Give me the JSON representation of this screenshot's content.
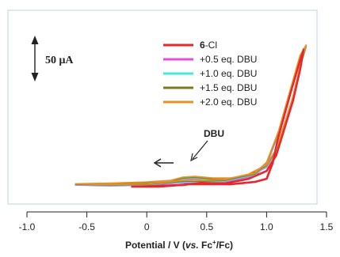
{
  "chart_data": {
    "type": "line",
    "title": "",
    "xlabel_parts": {
      "prefix": "Potential / V (",
      "italic": "vs.",
      "mid": " Fc",
      "sup": "+",
      "suffix": "/Fc)"
    },
    "ylabel": "",
    "xlim": [
      -1.0,
      1.5
    ],
    "ylim": [
      -30,
      200
    ],
    "x_ticks": [
      "-1.0",
      "-0.5",
      "0",
      "0.5",
      "1.0",
      "1.5"
    ],
    "x_tick_values": [
      -1.0,
      -0.5,
      0,
      0.5,
      1.0,
      1.5
    ],
    "scale_bar": {
      "label": "50 μA",
      "value": 50
    },
    "annotations": [
      {
        "text": "DBU",
        "x": 0.37,
        "y": 20
      },
      {
        "text": "",
        "direction": "arrow-left",
        "x": 0.06,
        "y": 18
      }
    ],
    "legend": {
      "position": "top-right",
      "entries": [
        {
          "bold": "6",
          "rest": "-Cl",
          "color": "#e8262b"
        },
        {
          "bold": "",
          "rest": "+0.5 eq. DBU",
          "color": "#e14ee0"
        },
        {
          "bold": "",
          "rest": "+1.0 eq. DBU",
          "color": "#45e6e6"
        },
        {
          "bold": "",
          "rest": "+1.5 eq. DBU",
          "color": "#7a7a1e"
        },
        {
          "bold": "",
          "rest": "+2.0 eq. DBU",
          "color": "#e8902a"
        }
      ]
    },
    "series": [
      {
        "name": "6-Cl",
        "color": "#e8262b",
        "forward": [
          [
            -0.13,
            0
          ],
          [
            0.1,
            0
          ],
          [
            0.2,
            1
          ],
          [
            0.35,
            3
          ],
          [
            0.5,
            3
          ],
          [
            0.7,
            3
          ],
          [
            0.9,
            6
          ],
          [
            1.0,
            10
          ],
          [
            1.05,
            30
          ],
          [
            1.1,
            65
          ],
          [
            1.2,
            120
          ],
          [
            1.28,
            162
          ],
          [
            1.31,
            176
          ]
        ],
        "reverse": [
          [
            1.31,
            176
          ],
          [
            1.28,
            150
          ],
          [
            1.22,
            110
          ],
          [
            1.15,
            75
          ],
          [
            1.08,
            40
          ],
          [
            1.0,
            20
          ],
          [
            0.85,
            10
          ],
          [
            0.65,
            4
          ],
          [
            0.45,
            5
          ],
          [
            0.3,
            2
          ],
          [
            0.1,
            1
          ],
          [
            -0.13,
            0
          ]
        ]
      },
      {
        "name": "+0.5 eq. DBU",
        "color": "#e14ee0",
        "forward": [
          [
            -0.6,
            2
          ],
          [
            -0.3,
            3
          ],
          [
            0,
            4
          ],
          [
            0.2,
            5
          ],
          [
            0.3,
            9
          ],
          [
            0.4,
            10
          ],
          [
            0.55,
            8
          ],
          [
            0.7,
            8
          ],
          [
            0.9,
            14
          ],
          [
            1.0,
            28
          ],
          [
            1.1,
            68
          ],
          [
            1.2,
            122
          ],
          [
            1.28,
            165
          ],
          [
            1.32,
            178
          ]
        ],
        "reverse": [
          [
            1.32,
            178
          ],
          [
            1.28,
            152
          ],
          [
            1.22,
            112
          ],
          [
            1.15,
            78
          ],
          [
            1.08,
            45
          ],
          [
            1.0,
            25
          ],
          [
            0.85,
            13
          ],
          [
            0.65,
            6
          ],
          [
            0.45,
            5
          ],
          [
            0.3,
            5
          ],
          [
            0.0,
            2
          ],
          [
            -0.3,
            1
          ],
          [
            -0.6,
            2
          ]
        ]
      },
      {
        "name": "+1.0 eq. DBU",
        "color": "#45e6e6",
        "forward": [
          [
            -0.6,
            2.5
          ],
          [
            -0.3,
            3.5
          ],
          [
            0,
            4.5
          ],
          [
            0.2,
            6
          ],
          [
            0.3,
            10
          ],
          [
            0.4,
            11
          ],
          [
            0.55,
            9
          ],
          [
            0.7,
            9
          ],
          [
            0.9,
            15
          ],
          [
            1.0,
            29
          ],
          [
            1.1,
            69
          ],
          [
            1.2,
            123
          ],
          [
            1.28,
            166
          ],
          [
            1.33,
            179
          ]
        ],
        "reverse": [
          [
            1.33,
            179
          ],
          [
            1.28,
            153
          ],
          [
            1.22,
            113
          ],
          [
            1.15,
            79
          ],
          [
            1.08,
            46
          ],
          [
            1.0,
            26
          ],
          [
            0.85,
            14
          ],
          [
            0.65,
            7
          ],
          [
            0.45,
            6
          ],
          [
            0.3,
            6
          ],
          [
            0.0,
            2.5
          ],
          [
            -0.3,
            1.5
          ],
          [
            -0.6,
            2.5
          ]
        ]
      },
      {
        "name": "+1.5 eq. DBU",
        "color": "#7a7a1e",
        "forward": [
          [
            -0.6,
            3
          ],
          [
            -0.3,
            4
          ],
          [
            0,
            5
          ],
          [
            0.2,
            7
          ],
          [
            0.3,
            11
          ],
          [
            0.4,
            12
          ],
          [
            0.55,
            10
          ],
          [
            0.7,
            10
          ],
          [
            0.9,
            16
          ],
          [
            1.0,
            30
          ],
          [
            1.1,
            70
          ],
          [
            1.2,
            124
          ],
          [
            1.28,
            167
          ],
          [
            1.33,
            180
          ]
        ],
        "reverse": [
          [
            1.33,
            180
          ],
          [
            1.28,
            154
          ],
          [
            1.22,
            114
          ],
          [
            1.15,
            80
          ],
          [
            1.08,
            47
          ],
          [
            1.0,
            27
          ],
          [
            0.85,
            15
          ],
          [
            0.65,
            8
          ],
          [
            0.45,
            7
          ],
          [
            0.3,
            7
          ],
          [
            0.0,
            3
          ],
          [
            -0.3,
            2
          ],
          [
            -0.6,
            3
          ]
        ]
      },
      {
        "name": "+2.0 eq. DBU",
        "color": "#e8902a",
        "forward": [
          [
            -0.6,
            3.5
          ],
          [
            -0.3,
            4.5
          ],
          [
            0,
            6
          ],
          [
            0.2,
            8
          ],
          [
            0.3,
            12
          ],
          [
            0.4,
            13
          ],
          [
            0.55,
            11
          ],
          [
            0.7,
            11
          ],
          [
            0.9,
            17
          ],
          [
            1.0,
            31
          ],
          [
            1.1,
            71
          ],
          [
            1.2,
            125
          ],
          [
            1.28,
            168
          ],
          [
            1.33,
            181
          ]
        ],
        "reverse": [
          [
            1.33,
            181
          ],
          [
            1.28,
            155
          ],
          [
            1.22,
            115
          ],
          [
            1.15,
            81
          ],
          [
            1.08,
            48
          ],
          [
            1.0,
            28
          ],
          [
            0.85,
            16
          ],
          [
            0.65,
            9
          ],
          [
            0.45,
            8
          ],
          [
            0.3,
            8
          ],
          [
            0.0,
            3.5
          ],
          [
            -0.3,
            2.5
          ],
          [
            -0.6,
            3.5
          ]
        ]
      }
    ]
  }
}
